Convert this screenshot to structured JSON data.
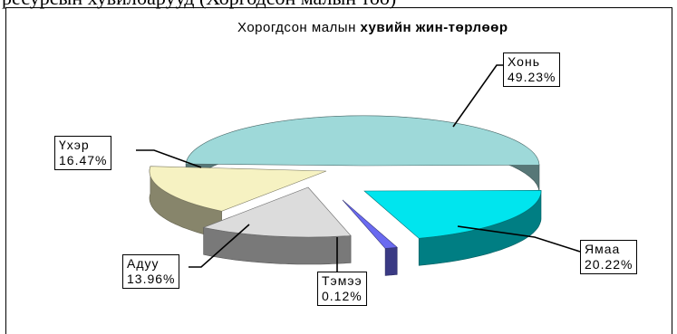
{
  "header": {
    "partial_text": "ресурсын  хувилбарууд (Хоргодсон малын  тоо)"
  },
  "chart_data": {
    "type": "pie",
    "title_part1": "Хорогдсон малын ",
    "title_part2": "хувийн жин-төрлөөр",
    "slices": [
      {
        "label": "Хонь",
        "value": 49.23,
        "display": "49.23%",
        "color": "#9ed9d9"
      },
      {
        "label": "Ямаа",
        "value": 20.22,
        "display": "20.22%",
        "color": "#00e5ee"
      },
      {
        "label": "Тэмээ",
        "value": 0.12,
        "display": "0.12%",
        "color": "#6a6af0"
      },
      {
        "label": "Адуу",
        "value": 13.96,
        "display": "13.96%",
        "color": "#dcdcdc"
      },
      {
        "label": "Үхэр",
        "value": 16.47,
        "display": "16.47%",
        "color": "#f6f2c2"
      }
    ]
  }
}
